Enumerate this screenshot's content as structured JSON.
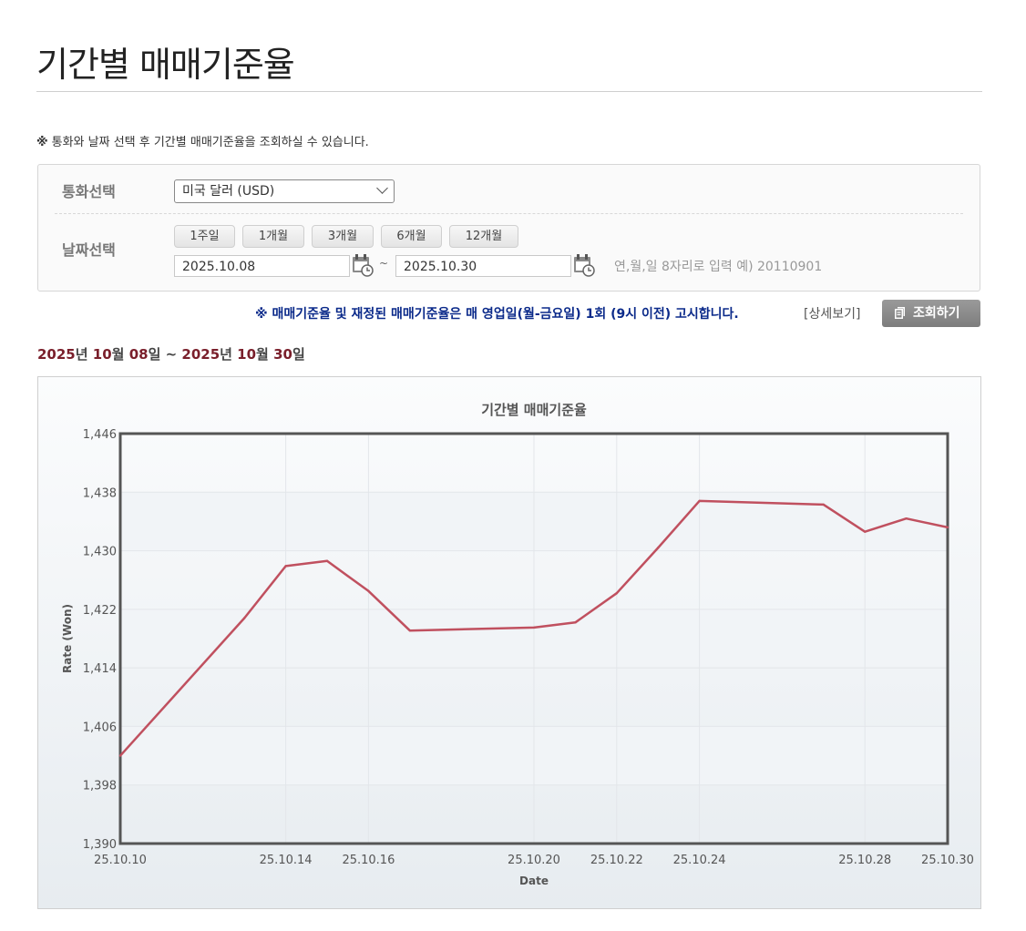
{
  "page": {
    "title": "기간별 매매기준율",
    "notice_mark": "※",
    "notice_text": "통화와 날짜 선택 후 기간별 매매기준율을 조회하실 수 있습니다."
  },
  "search": {
    "currency_label": "통화선택",
    "currency_selected": "미국 달러 (USD)",
    "date_label": "날짜선택",
    "period_buttons": [
      "1주일",
      "1개월",
      "3개월",
      "6개월",
      "12개월"
    ],
    "start_date": "2025.10.08",
    "end_date": "2025.10.30",
    "date_separator": "~",
    "date_hint": "연,월,일 8자리로 입력 예) 20110901"
  },
  "info": {
    "text": "※ 매매기준율 및 재정된 매매기준율은 매 영업일(월-금요일) 1회 (9시 이전) 고시합니다.",
    "detail_link": "[상세보기]",
    "query_button": "조회하기"
  },
  "range": {
    "y1": "2025",
    "u_year1": "년 ",
    "m1": "10",
    "u_month1": "월 ",
    "d1": "08",
    "u_day1": "일",
    "sep": " ~ ",
    "y2": "2025",
    "u_year2": "년 ",
    "m2": "10",
    "u_month2": "월 ",
    "d2": "30",
    "u_day2": "일"
  },
  "colors": {
    "line": "#c0505f",
    "range_accent": "#7a1f2b",
    "info_text": "#0b2a8a"
  },
  "chart_data": {
    "type": "line",
    "title": "기간별 매매기준율",
    "xlabel": "Date",
    "ylabel": "Rate (Won)",
    "ylim": [
      1390,
      1446
    ],
    "yticks": [
      "1,390",
      "1,398",
      "1,406",
      "1,414",
      "1,422",
      "1,430",
      "1,438",
      "1,446"
    ],
    "xticks": [
      "25.10.10",
      "25.10.14",
      "25.10.16",
      "25.10.20",
      "25.10.22",
      "25.10.24",
      "25.10.28",
      "25.10.30"
    ],
    "grid": true,
    "x": [
      "25.10.10",
      "25.10.13",
      "25.10.14",
      "25.10.15",
      "25.10.16",
      "25.10.17",
      "25.10.20",
      "25.10.21",
      "25.10.22",
      "25.10.23",
      "25.10.24",
      "25.10.27",
      "25.10.28",
      "25.10.29",
      "25.10.30"
    ],
    "series": [
      {
        "values": [
          1402.0,
          1420.8,
          1427.9,
          1428.6,
          1424.5,
          1419.1,
          1419.5,
          1420.2,
          1424.2,
          1430.4,
          1436.8,
          1436.3,
          1432.6,
          1434.4,
          1433.2
        ]
      }
    ]
  }
}
